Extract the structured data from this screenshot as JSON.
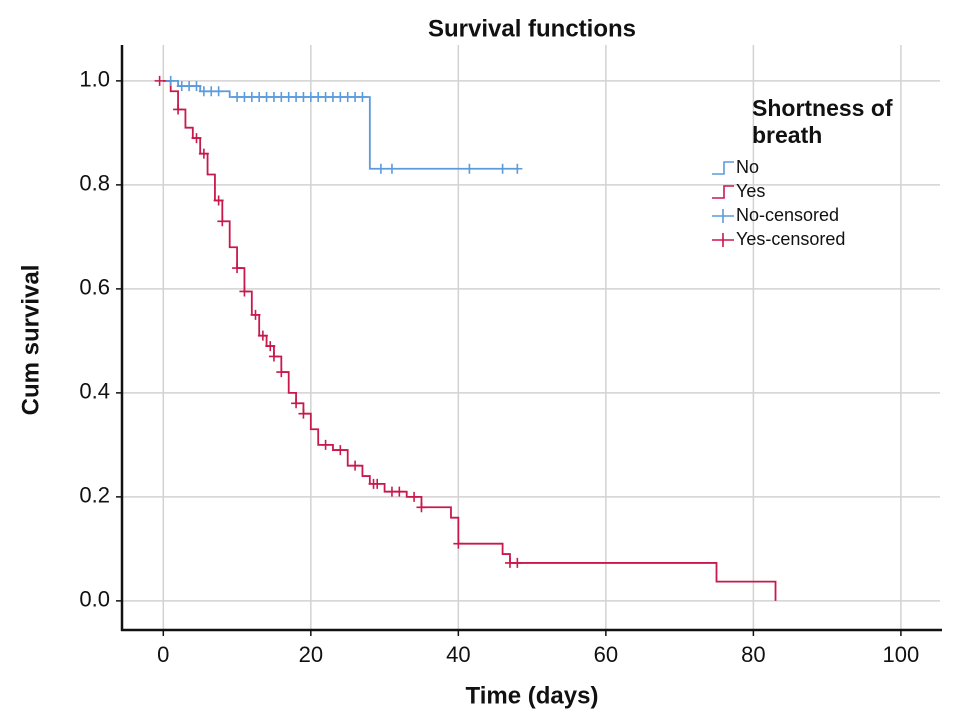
{
  "chart_data": {
    "type": "step",
    "title": "Survival functions",
    "x_label": "Time (days)",
    "y_label": "Cum survival",
    "legend_title": "Shortness of breath",
    "legend_position": "upper right",
    "grid": true,
    "xlim": [
      -5.6,
      105.3
    ],
    "ylim": [
      -0.056,
      1.069
    ],
    "xticks": [
      0,
      20,
      40,
      60,
      80,
      100
    ],
    "yticks": [
      {
        "value": 0,
        "label": "0.0"
      },
      0.2,
      0.4,
      0.6,
      0.8,
      {
        "value": 1,
        "label": "1.0"
      }
    ],
    "series": [
      {
        "name": "No",
        "color": "#5b9bdb",
        "marker": "step",
        "x": [
          0,
          2,
          5,
          9,
          28,
          48
        ],
        "values": [
          1.0,
          0.99,
          0.98,
          0.969,
          0.831,
          0.831
        ]
      },
      {
        "name": "Yes",
        "color": "#c8194c",
        "marker": "step",
        "x": [
          0,
          1,
          2,
          3,
          4,
          5,
          6,
          7,
          8,
          9,
          10,
          11,
          12,
          13,
          14,
          15,
          16,
          17,
          18,
          19,
          20,
          21,
          23,
          25,
          27,
          28,
          30,
          33,
          35,
          39,
          40,
          46,
          47,
          75,
          83
        ],
        "values": [
          1.0,
          0.98,
          0.945,
          0.91,
          0.89,
          0.86,
          0.82,
          0.77,
          0.73,
          0.68,
          0.64,
          0.595,
          0.55,
          0.51,
          0.49,
          0.47,
          0.44,
          0.4,
          0.38,
          0.36,
          0.33,
          0.3,
          0.29,
          0.26,
          0.24,
          0.225,
          0.21,
          0.2,
          0.18,
          0.16,
          0.11,
          0.09,
          0.073,
          0.037,
          0.0
        ]
      },
      {
        "name": "No-censored",
        "color": "#5b9bdb",
        "marker": "plus",
        "x": [
          1,
          2.5,
          3.5,
          4.5,
          5.5,
          6.5,
          7.5,
          10,
          11,
          12,
          13,
          14,
          15,
          16,
          17,
          18,
          19,
          20,
          21,
          22,
          23,
          24,
          25,
          26,
          27,
          29.5,
          31,
          41.5,
          46,
          48
        ],
        "values": [
          1.0,
          0.99,
          0.99,
          0.99,
          0.98,
          0.98,
          0.98,
          0.969,
          0.969,
          0.969,
          0.969,
          0.969,
          0.969,
          0.969,
          0.969,
          0.969,
          0.969,
          0.969,
          0.969,
          0.969,
          0.969,
          0.969,
          0.969,
          0.969,
          0.969,
          0.831,
          0.831,
          0.831,
          0.831,
          0.831
        ]
      },
      {
        "name": "Yes-censored",
        "color": "#c8194c",
        "marker": "plus",
        "x": [
          -0.5,
          2,
          4.5,
          5.5,
          7.5,
          8,
          10,
          11,
          12.5,
          13.5,
          14.5,
          15,
          16,
          18,
          19,
          22,
          24,
          26,
          28.5,
          29,
          31,
          32,
          34,
          35,
          40,
          47,
          48
        ],
        "values": [
          1.0,
          0.945,
          0.89,
          0.86,
          0.77,
          0.73,
          0.64,
          0.595,
          0.55,
          0.51,
          0.49,
          0.47,
          0.44,
          0.38,
          0.36,
          0.3,
          0.29,
          0.26,
          0.225,
          0.225,
          0.21,
          0.21,
          0.2,
          0.18,
          0.11,
          0.073,
          0.073
        ]
      }
    ]
  }
}
